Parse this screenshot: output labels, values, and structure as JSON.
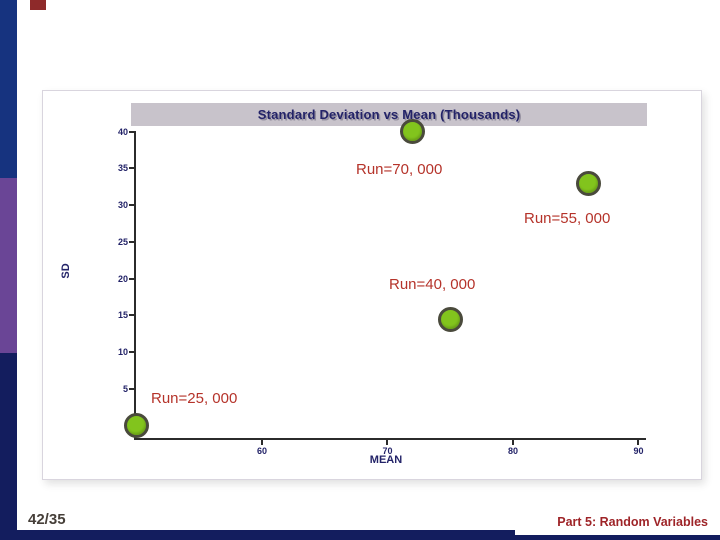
{
  "slide": {
    "footer": {
      "page": "42/35",
      "section": "Part 5: Random Variables"
    }
  },
  "colors": {
    "left_bar_blue": "#16337f",
    "left_bar_purple": "#6a4596",
    "left_bar_navy": "#131d5e",
    "accent_square": "#8e2a2a",
    "title_bar_bg": "#c8c3cb",
    "axis_text": "#232368",
    "marker_fill": "#82c41d",
    "marker_stroke": "#4a4a3c",
    "annotation_red": "#b5332a",
    "footer_red": "#9e2428"
  },
  "chart_data": {
    "type": "scatter",
    "title": "Standard Deviation vs Mean (Thousands)",
    "xlabel": "MEAN",
    "ylabel": "SD",
    "x_ticks": [
      60,
      70,
      80,
      90
    ],
    "y_ticks": [
      5,
      10,
      15,
      20,
      25,
      30,
      35,
      40
    ],
    "xlim": [
      49.8,
      90.6
    ],
    "ylim": [
      -1.7,
      40.1
    ],
    "grid": false,
    "legend": false,
    "points": [
      {
        "mean": 72,
        "sd": 40,
        "label": "Run=70, 000"
      },
      {
        "mean": 86,
        "sd": 33,
        "label": "Run=55, 000"
      },
      {
        "mean": 75,
        "sd": 14.5,
        "label": "Run=40, 000"
      },
      {
        "mean": 50,
        "sd": 0,
        "label": "Run=25, 000"
      }
    ]
  }
}
